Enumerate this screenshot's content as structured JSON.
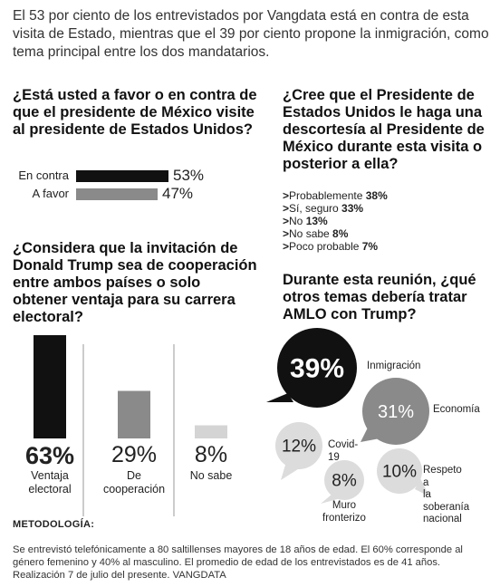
{
  "intro": "El 53 por ciento de los entrevistados por Vangdata está en contra de esta visita de Estado, mientras que el 39 por ciento propone la inmigración, como tema principal entre los dos mandatarios.",
  "q1": "¿Está usted a favor o en contra de que el presidente de México visite al presidente de Estados Unidos?",
  "q2": "¿Cree que el Presidente de Estados Unidos le haga una descortesía al Presidente de México durante esta visita o posterior a ella?",
  "q3": "¿Considera que la invitación de Donald Trump sea de cooperación entre ambos países o solo obtener ventaja para su carrera electoral?",
  "q4": "Durante esta reunión, ¿qué otros temas debería tratar AMLO con Trump?",
  "methodology_title": "METODOLOGÍA:",
  "methodology_text": "Se entrevistó telefónicamente a 80 saltillenses mayores de 18 años de edad. El 60% corresponde al género femenino y 40% al masculino. El promedio de edad de los entrevistados es de 41 años. Realización 7 de julio del presente. VANGDATA",
  "chart_data": [
    {
      "type": "bar",
      "orientation": "horizontal",
      "categories": [
        "En contra",
        "A favor"
      ],
      "values": [
        53,
        47
      ],
      "value_labels": [
        "53%",
        "47%"
      ],
      "colors": [
        "#111111",
        "#8a8a8a"
      ]
    },
    {
      "type": "table",
      "items": [
        {
          "marker": ">",
          "label": "Probablemente",
          "value": "38%"
        },
        {
          "marker": ">",
          "label": "Sí, seguro",
          "value": "33%"
        },
        {
          "marker": ">",
          "label": "No",
          "value": "13%"
        },
        {
          "marker": ">",
          "label": "No sabe",
          "value": "8%"
        },
        {
          "marker": ">",
          "label": "Poco probable",
          "value": "7%"
        }
      ]
    },
    {
      "type": "bar",
      "orientation": "vertical",
      "categories": [
        "Ventaja electoral",
        "De cooperación",
        "No sabe"
      ],
      "category_lines": [
        [
          "Ventaja",
          "electoral"
        ],
        [
          "De",
          "cooperación"
        ],
        [
          "No sabe"
        ]
      ],
      "values": [
        63,
        29,
        8
      ],
      "value_labels": [
        "63%",
        "29%",
        "8%"
      ],
      "colors": [
        "#111111",
        "#8a8a8a",
        "#d4d4d4"
      ]
    },
    {
      "type": "bubble",
      "categories": [
        "Inmigración",
        "Economía",
        "Covid-19",
        "Muro fronterizo",
        "Respeto a la soberanía nacional"
      ],
      "category_lines": [
        [
          "Inmigración"
        ],
        [
          "Economía"
        ],
        [
          "Covid-19"
        ],
        [
          "Muro",
          "fronterizo"
        ],
        [
          "Respeto a",
          "la soberanía",
          "nacional"
        ]
      ],
      "values": [
        39,
        31,
        12,
        8,
        10
      ],
      "value_labels": [
        "39%",
        "31%",
        "12%",
        "8%",
        "10%"
      ],
      "colors": [
        "#111111",
        "#8a8a8a",
        "#dcdcdc",
        "#dcdcdc",
        "#dcdcdc"
      ]
    }
  ]
}
